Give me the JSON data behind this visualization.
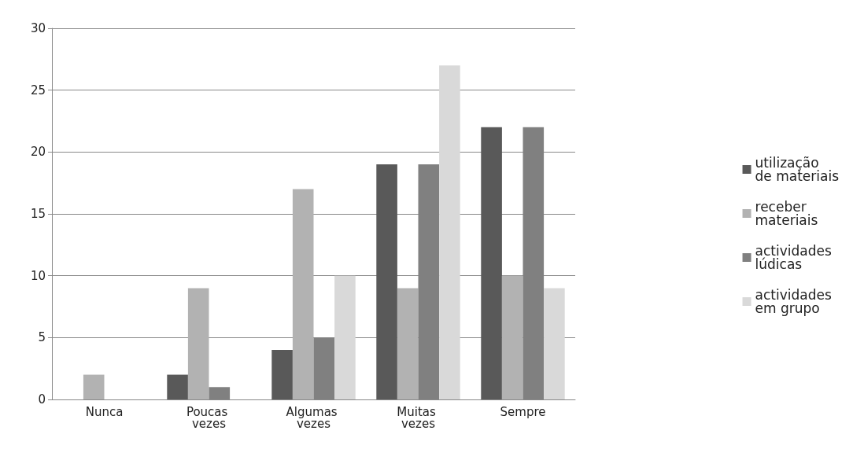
{
  "chart_data": {
    "type": "bar",
    "categories": [
      "Nunca",
      "Poucas vezes",
      "Algumas vezes",
      "Muitas vezes",
      "Sempre"
    ],
    "series": [
      {
        "name": "utilização de materiais",
        "color": "#595959",
        "values": [
          0,
          2,
          4,
          19,
          22
        ]
      },
      {
        "name": "receber materiais",
        "color": "#b2b2b2",
        "values": [
          2,
          9,
          17,
          9,
          10
        ]
      },
      {
        "name": "actividades lúdicas",
        "color": "#808080",
        "values": [
          0,
          1,
          5,
          19,
          22
        ]
      },
      {
        "name": "actividades em grupo",
        "color": "#d9d9d9",
        "values": [
          0,
          0,
          10,
          27,
          9
        ]
      }
    ],
    "ylim": [
      0,
      30
    ],
    "yticks": [
      0,
      5,
      10,
      15,
      20,
      25,
      30
    ],
    "grid": "y",
    "legend": "right"
  }
}
